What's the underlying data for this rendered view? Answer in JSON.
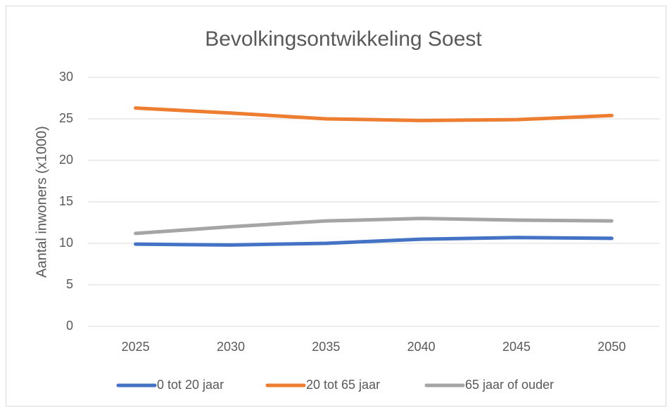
{
  "chart_data": {
    "type": "line",
    "title": "Bevolkingsontwikkeling Soest",
    "y_label": "Aantal inwoners (x1000)",
    "categories": [
      "2025",
      "2030",
      "2035",
      "2040",
      "2045",
      "2050"
    ],
    "series": [
      {
        "name": "0 tot 20 jaar",
        "color": "#4472c4",
        "values": [
          9.9,
          9.8,
          10.0,
          10.5,
          10.7,
          10.6
        ]
      },
      {
        "name": "20 tot 65 jaar",
        "color": "#ed7d31",
        "values": [
          26.3,
          25.7,
          25.0,
          24.8,
          24.9,
          25.4
        ]
      },
      {
        "name": "65 jaar of ouder",
        "color": "#a5a5a5",
        "values": [
          11.2,
          12.0,
          12.7,
          13.0,
          12.8,
          12.7
        ]
      }
    ],
    "ylim": [
      0,
      30
    ],
    "yticks": [
      0,
      5,
      10,
      15,
      20,
      25,
      30
    ],
    "grid": true,
    "legend": "bottom"
  }
}
